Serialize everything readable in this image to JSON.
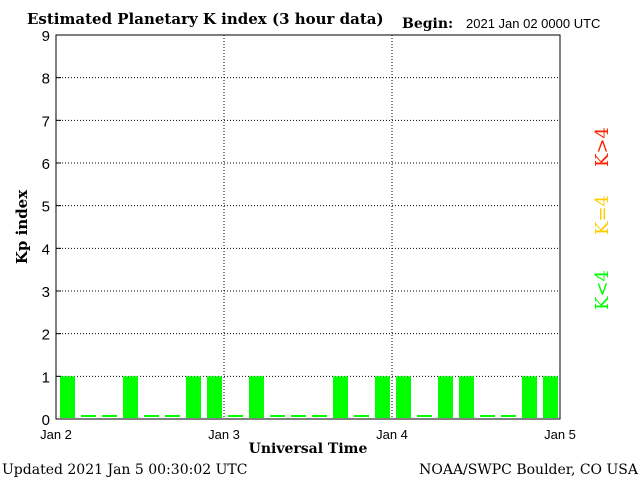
{
  "chart_data": {
    "type": "bar",
    "title": "Estimated Planetary K index (3 hour data)",
    "begin_label": "Begin:",
    "begin_value": "2021 Jan 02 0000 UTC",
    "xlabel": "Universal Time",
    "ylabel": "Kp index",
    "ylim": [
      0,
      9
    ],
    "y_ticks": [
      "0",
      "1",
      "2",
      "3",
      "4",
      "5",
      "6",
      "7",
      "8",
      "9"
    ],
    "x_ticks": [
      "Jan 2",
      "Jan 3",
      "Jan 4",
      "Jan 5"
    ],
    "interval_hours": 3,
    "values": [
      1,
      0,
      0,
      1,
      0,
      0,
      1,
      1,
      0,
      1,
      0,
      0,
      0,
      1,
      0,
      1,
      1,
      0,
      1,
      1,
      0,
      0,
      1,
      1
    ],
    "grid": true,
    "legend": [
      {
        "label": "K>4",
        "color": "#ff2200"
      },
      {
        "label": "K=4",
        "color": "#ffcc00"
      },
      {
        "label": "K<4",
        "color": "#00ff00"
      }
    ],
    "bar_color": "#00ff00"
  },
  "footer": {
    "updated": "Updated 2021 Jan  5 00:30:02 UTC",
    "source": "NOAA/SWPC Boulder, CO USA"
  }
}
